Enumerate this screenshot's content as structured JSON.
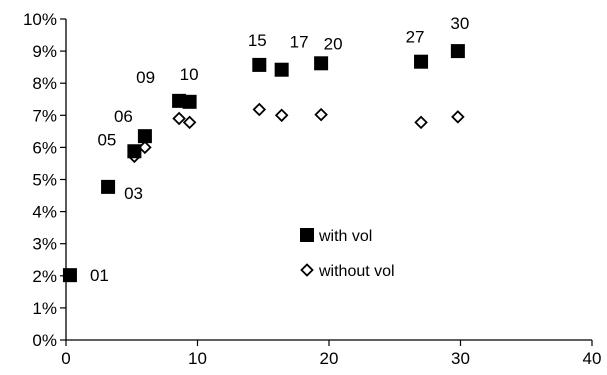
{
  "chart_data": {
    "type": "scatter",
    "title": "",
    "xlabel": "",
    "ylabel": "",
    "xlim": [
      0,
      40
    ],
    "ylim": [
      0,
      10
    ],
    "x_ticks": [
      0,
      10,
      20,
      30,
      40
    ],
    "y_ticks": [
      0,
      1,
      2,
      3,
      4,
      5,
      6,
      7,
      8,
      9,
      10
    ],
    "y_tick_labels": [
      "0%",
      "1%",
      "2%",
      "3%",
      "4%",
      "5%",
      "6%",
      "7%",
      "8%",
      "9%",
      "10%"
    ],
    "x_tick_labels": [
      "0",
      "10",
      "20",
      "30",
      "40"
    ],
    "grid": false,
    "legend_position": "center-right",
    "series": [
      {
        "name": "with vol",
        "marker": "filled-square",
        "color": "#000000",
        "points": [
          {
            "x": 0.3,
            "y": 2.02,
            "label": "01"
          },
          {
            "x": 3.2,
            "y": 4.77,
            "label": "03"
          },
          {
            "x": 5.2,
            "y": 5.88,
            "label": "05"
          },
          {
            "x": 6.0,
            "y": 6.35,
            "label": "06"
          },
          {
            "x": 8.6,
            "y": 7.45,
            "label": "09"
          },
          {
            "x": 9.4,
            "y": 7.42,
            "label": "10"
          },
          {
            "x": 14.7,
            "y": 8.57,
            "label": "15"
          },
          {
            "x": 16.4,
            "y": 8.42,
            "label": "17"
          },
          {
            "x": 19.4,
            "y": 8.62,
            "label": "20"
          },
          {
            "x": 27.0,
            "y": 8.67,
            "label": "27"
          },
          {
            "x": 29.8,
            "y": 9.0,
            "label": "30"
          }
        ]
      },
      {
        "name": "without vol",
        "marker": "hollow-diamond",
        "color": "#000000",
        "points": [
          {
            "x": 5.2,
            "y": 5.72
          },
          {
            "x": 6.0,
            "y": 6.0
          },
          {
            "x": 8.6,
            "y": 6.9
          },
          {
            "x": 9.4,
            "y": 6.78
          },
          {
            "x": 14.7,
            "y": 7.18
          },
          {
            "x": 16.4,
            "y": 7.0
          },
          {
            "x": 19.4,
            "y": 7.02
          },
          {
            "x": 27.0,
            "y": 6.78
          },
          {
            "x": 29.8,
            "y": 6.95
          }
        ]
      }
    ]
  }
}
